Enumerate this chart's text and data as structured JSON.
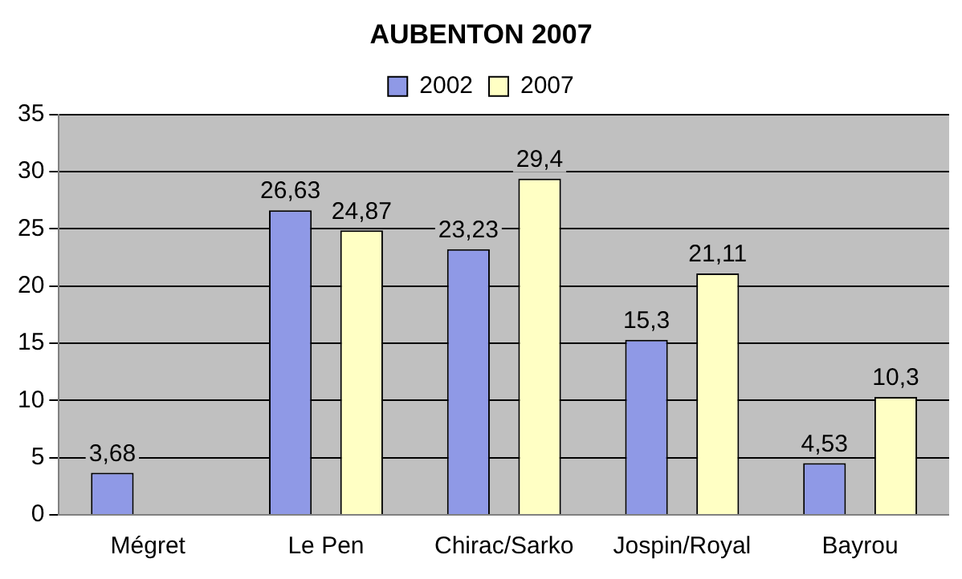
{
  "chart_data": {
    "type": "bar",
    "title": "AUBENTON 2007",
    "categories": [
      "Mégret",
      "Le Pen",
      "Chirac/Sarko",
      "Jospin/Royal",
      "Bayrou"
    ],
    "series": [
      {
        "name": "2002",
        "color": "#8f99e6",
        "values": [
          3.68,
          26.63,
          23.23,
          15.3,
          4.53
        ],
        "value_labels": [
          "3,68",
          "26,63",
          "23,23",
          "15,3",
          "4,53"
        ]
      },
      {
        "name": "2007",
        "color": "#ffffc4",
        "values": [
          null,
          24.87,
          29.4,
          21.11,
          10.3
        ],
        "value_labels": [
          null,
          "24,87",
          "29,4",
          "21,11",
          "10,3"
        ]
      }
    ],
    "ylim": [
      0,
      35
    ],
    "yticks": [
      0,
      5,
      10,
      15,
      20,
      25,
      30,
      35
    ],
    "grid": "y",
    "legend": "top"
  }
}
